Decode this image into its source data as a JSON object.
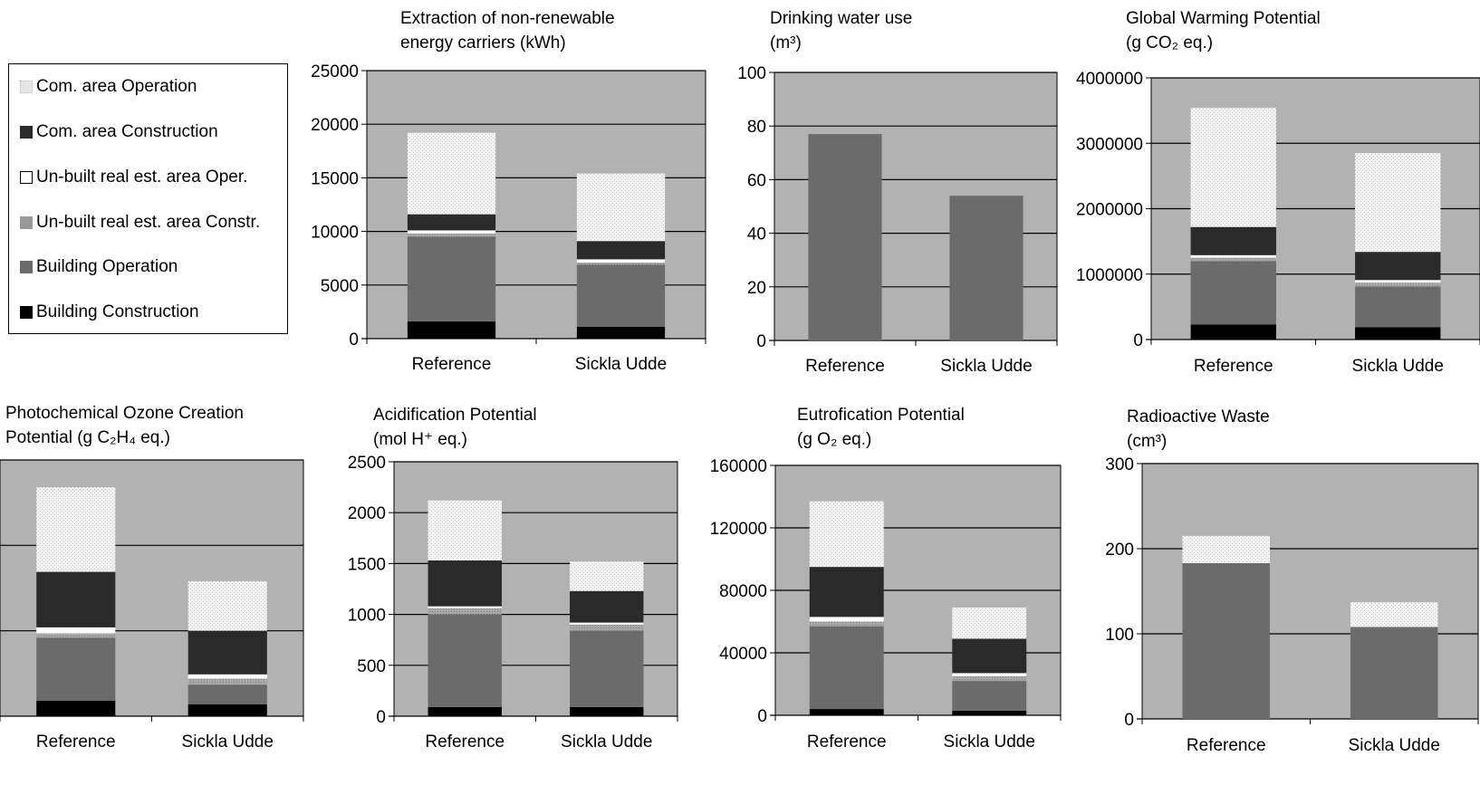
{
  "colors": {
    "plot_bg": "#b2b2b2",
    "Building Construction": "#000000",
    "Building Operation": "#6b6b6b",
    "Un-built real est. area Constr.": "#999999",
    "Un-built real est. area Oper.": "#ffffff",
    "Com. area Construction": "#2a2a2a",
    "Com. area Operation": "#e6e6e6"
  },
  "legend": {
    "items": [
      {
        "label": "Com. area Operation",
        "color": "#e6e6e6"
      },
      {
        "label": "Com. area Construction",
        "color": "#2a2a2a"
      },
      {
        "label": "Un-built real est. area Oper.",
        "color": "#ffffff"
      },
      {
        "label": "Un-built real est. area Constr.",
        "color": "#999999"
      },
      {
        "label": "Building Operation",
        "color": "#6b6b6b"
      },
      {
        "label": "Building Construction",
        "color": "#000000"
      }
    ]
  },
  "chart_data": [
    {
      "type": "bar",
      "stacked": true,
      "title_lines": [
        "Extraction of non-renewable",
        "energy carriers (kWh)"
      ],
      "categories": [
        "Reference",
        "Sickla Udde"
      ],
      "ylim": [
        0,
        25000
      ],
      "yticks": [
        0,
        5000,
        10000,
        15000,
        20000,
        25000
      ],
      "ytick_labels": [
        "0",
        "5000",
        "10000",
        "15000",
        "20000",
        "25000"
      ],
      "gridlines": true,
      "series": [
        {
          "name": "Building Construction",
          "values": [
            1600,
            1100
          ]
        },
        {
          "name": "Building Operation",
          "values": [
            7900,
            5800
          ]
        },
        {
          "name": "Un-built real est. area Constr.",
          "values": [
            300,
            200
          ]
        },
        {
          "name": "Un-built real est. area Oper.",
          "values": [
            300,
            300
          ]
        },
        {
          "name": "Com. area Construction",
          "values": [
            1500,
            1700
          ]
        },
        {
          "name": "Com. area Operation",
          "values": [
            7600,
            6300
          ]
        }
      ]
    },
    {
      "type": "bar",
      "stacked": true,
      "title_lines": [
        "Drinking water use",
        "(m³)"
      ],
      "categories": [
        "Reference",
        "Sickla Udde"
      ],
      "ylim": [
        0,
        100
      ],
      "yticks": [
        0,
        20,
        40,
        60,
        80,
        100
      ],
      "ytick_labels": [
        "0",
        "20",
        "40",
        "60",
        "80",
        "100"
      ],
      "gridlines": true,
      "series": [
        {
          "name": "Building Operation",
          "values": [
            77,
            54
          ]
        }
      ]
    },
    {
      "type": "bar",
      "stacked": true,
      "title_lines": [
        "Global Warming Potential",
        "(g CO₂ eq.)"
      ],
      "categories": [
        "Reference",
        "Sickla Udde"
      ],
      "ylim": [
        0,
        4000000
      ],
      "yticks": [
        0,
        1000000,
        2000000,
        3000000,
        4000000
      ],
      "ytick_labels": [
        "0",
        "1000000",
        "2000000",
        "3000000",
        "4000000"
      ],
      "gridlines": true,
      "series": [
        {
          "name": "Building Construction",
          "values": [
            230000,
            190000
          ]
        },
        {
          "name": "Building Operation",
          "values": [
            970000,
            620000
          ]
        },
        {
          "name": "Un-built real est. area Constr.",
          "values": [
            50000,
            60000
          ]
        },
        {
          "name": "Un-built real est. area Oper.",
          "values": [
            40000,
            40000
          ]
        },
        {
          "name": "Com. area Construction",
          "values": [
            430000,
            430000
          ]
        },
        {
          "name": "Com. area Operation",
          "values": [
            1820000,
            1510000
          ]
        }
      ]
    },
    {
      "type": "bar",
      "stacked": true,
      "title_lines": [
        "Photochemical Ozone Creation",
        "Potential (g C₂H₄ eq.)"
      ],
      "categories": [
        "Reference",
        "Sickla Udde"
      ],
      "ylim": [
        0,
        3
      ],
      "yticks": [
        0,
        1,
        2,
        3
      ],
      "ytick_labels": [
        "",
        "",
        "",
        ""
      ],
      "gridlines": true,
      "series": [
        {
          "name": "Building Construction",
          "values": [
            0.18,
            0.14
          ]
        },
        {
          "name": "Building Operation",
          "values": [
            0.74,
            0.23
          ]
        },
        {
          "name": "Un-built real est. area Constr.",
          "values": [
            0.05,
            0.07
          ]
        },
        {
          "name": "Un-built real est. area Oper.",
          "values": [
            0.07,
            0.05
          ]
        },
        {
          "name": "Com. area Construction",
          "values": [
            0.65,
            0.51
          ]
        },
        {
          "name": "Com. area Operation",
          "values": [
            0.99,
            0.58
          ]
        }
      ]
    },
    {
      "type": "bar",
      "stacked": true,
      "title_lines": [
        "Acidification Potential",
        "(mol H⁺ eq.)"
      ],
      "categories": [
        "Reference",
        "Sickla Udde"
      ],
      "ylim": [
        0,
        2500
      ],
      "yticks": [
        0,
        500,
        1000,
        1500,
        2000,
        2500
      ],
      "ytick_labels": [
        "0",
        "500",
        "1000",
        "1500",
        "2000",
        "2500"
      ],
      "gridlines": true,
      "series": [
        {
          "name": "Building Construction",
          "values": [
            90,
            90
          ]
        },
        {
          "name": "Building Operation",
          "values": [
            910,
            750
          ]
        },
        {
          "name": "Un-built real est. area Constr.",
          "values": [
            60,
            60
          ]
        },
        {
          "name": "Un-built real est. area Oper.",
          "values": [
            20,
            20
          ]
        },
        {
          "name": "Com. area Construction",
          "values": [
            450,
            310
          ]
        },
        {
          "name": "Com. area Operation",
          "values": [
            590,
            290
          ]
        }
      ]
    },
    {
      "type": "bar",
      "stacked": true,
      "title_lines": [
        "Eutrofication Potential",
        "(g O₂ eq.)"
      ],
      "categories": [
        "Reference",
        "Sickla Udde"
      ],
      "ylim": [
        0,
        160000
      ],
      "yticks": [
        0,
        40000,
        80000,
        120000,
        160000
      ],
      "ytick_labels": [
        "0",
        "40000",
        "80000",
        "120000",
        "160000"
      ],
      "gridlines": true,
      "series": [
        {
          "name": "Building Construction",
          "values": [
            4000,
            3000
          ]
        },
        {
          "name": "Building Operation",
          "values": [
            53000,
            19000
          ]
        },
        {
          "name": "Un-built real est. area Constr.",
          "values": [
            3000,
            3000
          ]
        },
        {
          "name": "Un-built real est. area Oper.",
          "values": [
            3000,
            2000
          ]
        },
        {
          "name": "Com. area Construction",
          "values": [
            32000,
            22000
          ]
        },
        {
          "name": "Com. area Operation",
          "values": [
            42000,
            20000
          ]
        }
      ]
    },
    {
      "type": "bar",
      "stacked": true,
      "title_lines": [
        "Radioactive Waste",
        "(cm³)"
      ],
      "categories": [
        "Reference",
        "Sickla Udde"
      ],
      "ylim": [
        0,
        300
      ],
      "yticks": [
        0,
        100,
        200,
        300
      ],
      "ytick_labels": [
        "0",
        "100",
        "200",
        "300"
      ],
      "gridlines": true,
      "series": [
        {
          "name": "Building Operation",
          "values": [
            183,
            108
          ]
        },
        {
          "name": "Com. area Operation",
          "values": [
            32,
            29
          ]
        }
      ]
    }
  ]
}
